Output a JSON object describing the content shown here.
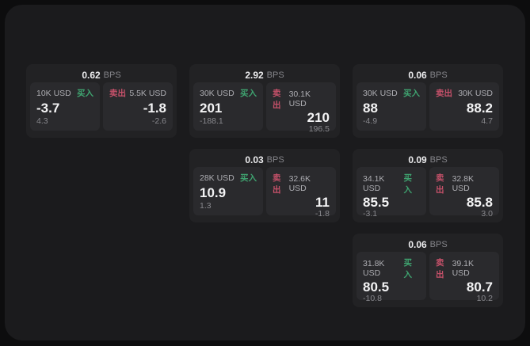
{
  "labels": {
    "bps_unit": "BPS",
    "buy": "买入",
    "sell": "卖出"
  },
  "colors": {
    "buy": "#3fa470",
    "sell": "#c6516a",
    "card_bg": "#222224",
    "panel_bg": "#2a2a2d",
    "window_bg": "#1b1b1d"
  },
  "cards": [
    {
      "bps": "0.62",
      "buy": {
        "amount": "10K USD",
        "price": "-3.7",
        "delta": "4.3"
      },
      "sell": {
        "amount": "5.5K USD",
        "price": "-1.8",
        "delta": "-2.6"
      }
    },
    {
      "bps": "2.92",
      "buy": {
        "amount": "30K USD",
        "price": "201",
        "delta": "-188.1"
      },
      "sell": {
        "amount": "30.1K USD",
        "price": "210",
        "delta": "196.5"
      }
    },
    {
      "bps": "0.06",
      "buy": {
        "amount": "30K USD",
        "price": "88",
        "delta": "-4.9"
      },
      "sell": {
        "amount": "30K USD",
        "price": "88.2",
        "delta": "4.7"
      }
    },
    {
      "bps": "0.03",
      "buy": {
        "amount": "28K USD",
        "price": "10.9",
        "delta": "1.3"
      },
      "sell": {
        "amount": "32.6K USD",
        "price": "11",
        "delta": "-1.8"
      }
    },
    {
      "bps": "0.09",
      "buy": {
        "amount": "34.1K USD",
        "price": "85.5",
        "delta": "-3.1"
      },
      "sell": {
        "amount": "32.8K USD",
        "price": "85.8",
        "delta": "3.0"
      }
    },
    {
      "bps": "0.06",
      "buy": {
        "amount": "31.8K USD",
        "price": "80.5",
        "delta": "-10.8"
      },
      "sell": {
        "amount": "39.1K USD",
        "price": "80.7",
        "delta": "10.2"
      }
    }
  ]
}
